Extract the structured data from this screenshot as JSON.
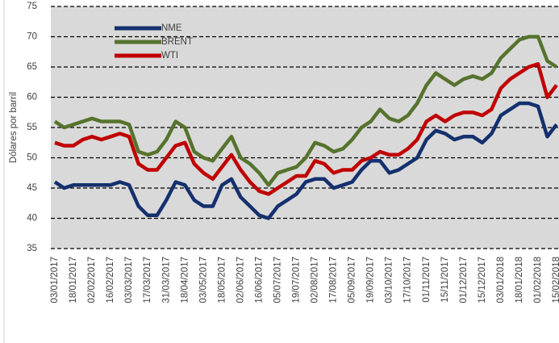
{
  "chart_data": {
    "type": "line",
    "ylabel": "Dólares por barril",
    "categories": [
      "03/01/2017",
      null,
      "18/01/2017",
      null,
      "02/02/2017",
      null,
      "16/02/2017",
      null,
      "03/03/2017",
      null,
      "17/03/2017",
      null,
      "31/03/2017",
      null,
      "18/04/2017",
      null,
      "03/05/2017",
      null,
      "18/05/2017",
      null,
      "02/06/2017",
      null,
      "16/06/2017",
      null,
      "05/07/2017",
      null,
      "19/07/2017",
      null,
      "02/08/2017",
      null,
      "17/08/2017",
      null,
      "05/09/2017",
      null,
      "19/09/2017",
      null,
      "03/10/2017",
      null,
      "17/10/2017",
      null,
      "01/11/2017",
      null,
      "15/11/2017",
      null,
      "01/12/2017",
      null,
      "15/12/2017",
      null,
      "03/01/2018",
      null,
      "18/01/2018",
      null,
      "01/02/2018",
      null,
      "15/02/2018"
    ],
    "series": [
      {
        "name": "NME",
        "color": "#14306e",
        "values": [
          46,
          45,
          45.5,
          45.5,
          45.5,
          45.5,
          45.5,
          46,
          45.5,
          42,
          40.5,
          40.5,
          43,
          46,
          45.5,
          43,
          42,
          42,
          45.5,
          46.5,
          43.5,
          42,
          40.5,
          40,
          42,
          43,
          44,
          46,
          46.5,
          46.5,
          45,
          45.5,
          46,
          48,
          49.5,
          49.5,
          47.5,
          48,
          49,
          50,
          53,
          54.5,
          54,
          53,
          53.5,
          53.5,
          52.5,
          54,
          57,
          58,
          59,
          59,
          58.5,
          53.5,
          55.5
        ]
      },
      {
        "name": "BRENT",
        "color": "#56732e",
        "values": [
          56,
          55,
          55.5,
          56,
          56.5,
          56,
          56,
          56,
          55.5,
          51,
          50.5,
          51,
          53,
          56,
          55,
          51,
          50,
          49.5,
          51.5,
          53.5,
          50,
          49,
          47.5,
          45.5,
          47.5,
          48,
          48.5,
          50,
          52.5,
          52,
          51,
          51.5,
          53,
          55,
          56,
          58,
          56.5,
          56,
          57,
          59,
          62,
          64,
          63,
          62,
          63,
          63.5,
          63,
          64,
          66.5,
          68,
          69.5,
          70,
          70,
          66,
          65
        ]
      },
      {
        "name": "WTI",
        "color": "#c00000",
        "values": [
          52.5,
          52,
          52,
          53,
          53.5,
          53,
          53.5,
          54,
          53.5,
          49,
          48,
          48,
          50,
          52,
          52.5,
          49,
          47.5,
          46.5,
          48.5,
          50.5,
          48,
          46,
          44.5,
          44,
          45,
          46,
          47,
          47,
          49.5,
          49,
          47.5,
          48,
          48,
          49.5,
          50,
          51,
          50.5,
          50.5,
          51.5,
          53,
          56,
          57,
          56,
          57,
          57.5,
          57.5,
          57,
          58,
          61.5,
          63,
          64,
          65,
          65.5,
          60,
          62
        ]
      }
    ],
    "ylim": [
      35,
      75
    ],
    "yticks": [
      35,
      40,
      45,
      50,
      55,
      60,
      65,
      70,
      75
    ],
    "grid": true
  }
}
